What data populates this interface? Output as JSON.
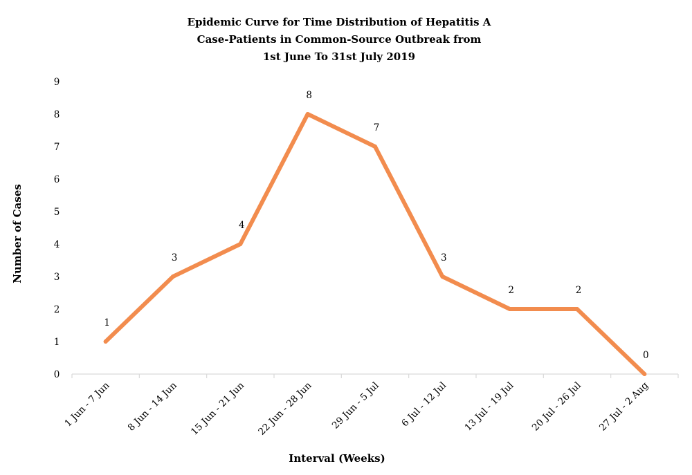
{
  "chart_data": {
    "type": "line",
    "title_lines": [
      "Epidemic Curve for Time Distribution of Hepatitis A",
      "Case-Patients in Common-Source Outbreak from",
      "1st June To 31st July 2019"
    ],
    "xlabel": "Interval (Weeks)",
    "ylabel": "Number of Cases",
    "categories": [
      "1 Jun - 7 Jun",
      "8 Jun - 14 Jun",
      "15 Jun - 21 Jun",
      "22 Jun - 28 Jun",
      "29 Jun - 5 Jul",
      "6 Jul - 12 Jul",
      "13 Jul - 19 Jul",
      "20 Jul - 26 Jul",
      "27 Jul - 2 Aug"
    ],
    "values": [
      1,
      3,
      4,
      8,
      7,
      3,
      2,
      2,
      0
    ],
    "ylim": [
      0,
      9
    ],
    "yticks": [
      0,
      1,
      2,
      3,
      4,
      5,
      6,
      7,
      8,
      9
    ],
    "grid": false,
    "legend": "none",
    "line_color": "#F28C4E",
    "axis_color": "#D9D9D9"
  }
}
